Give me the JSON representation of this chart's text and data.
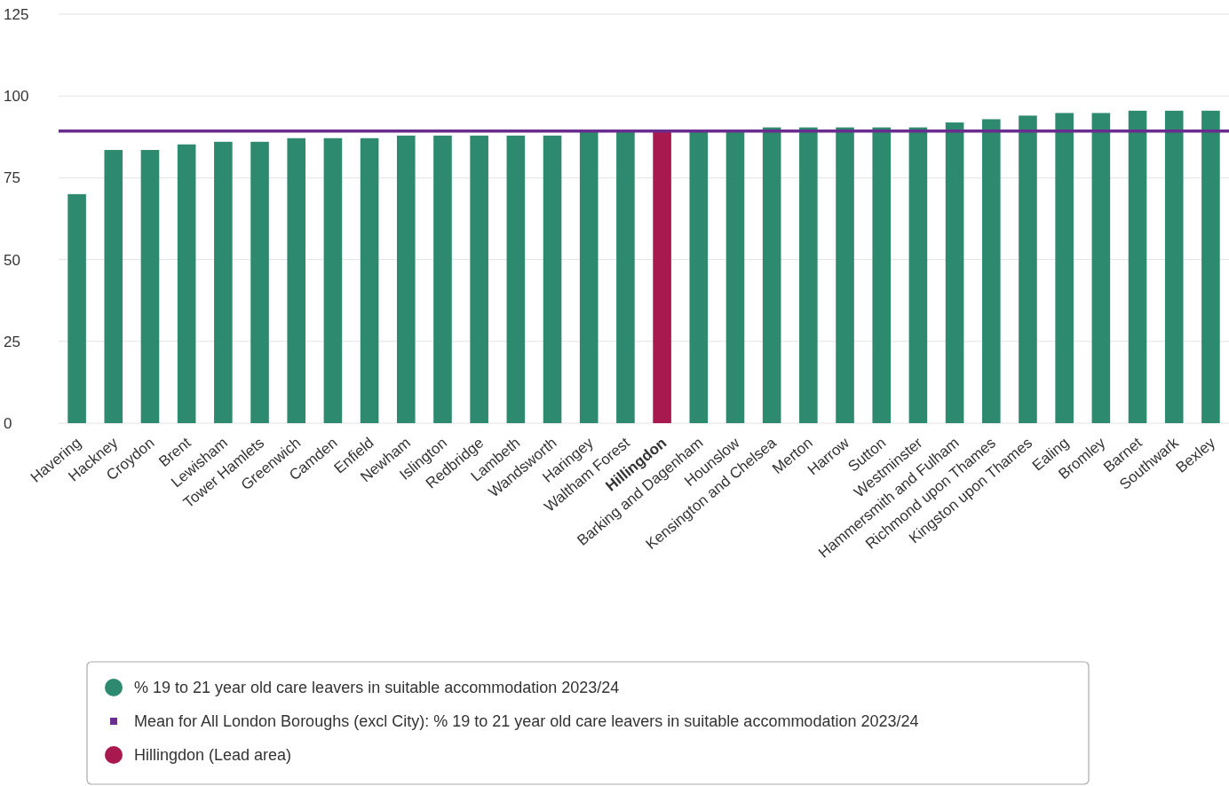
{
  "chart_data": {
    "type": "bar",
    "categories": [
      "Havering",
      "Hackney",
      "Croydon",
      "Brent",
      "Lewisham",
      "Tower Hamlets",
      "Greenwich",
      "Camden",
      "Enfield",
      "Newham",
      "Islington",
      "Redbridge",
      "Lambeth",
      "Wandsworth",
      "Haringey",
      "Waltham Forest",
      "Hillingdon",
      "Barking and Dagenham",
      "Hounslow",
      "Kensington and Chelsea",
      "Merton",
      "Harrow",
      "Sutton",
      "Westminster",
      "Hammersmith and Fulham",
      "Richmond upon Thames",
      "Kingston upon Thames",
      "Ealing",
      "Bromley",
      "Barnet",
      "Southwark",
      "Bexley"
    ],
    "series": [
      {
        "name": "% 19 to 21 year old care leavers in suitable accommodation 2023/24",
        "color": "#2e8a6e",
        "values": [
          70,
          83.5,
          83.5,
          85.2,
          86,
          86,
          87.1,
          87.1,
          87.1,
          87.9,
          87.9,
          87.9,
          87.9,
          87.9,
          89,
          89,
          null,
          89,
          89,
          90.4,
          90.4,
          90.4,
          90.4,
          90.4,
          91.9,
          92.9,
          94,
          94.8,
          94.8,
          95.5,
          95.5,
          95.5
        ]
      },
      {
        "name": "Hillingdon (Lead area)",
        "color": "#a8194f",
        "values": [
          null,
          null,
          null,
          null,
          null,
          null,
          null,
          null,
          null,
          null,
          null,
          null,
          null,
          null,
          null,
          null,
          89,
          null,
          null,
          null,
          null,
          null,
          null,
          null,
          null,
          null,
          null,
          null,
          null,
          null,
          null,
          null
        ]
      }
    ],
    "ref_lines": [
      {
        "axis": "y",
        "value": 89.3,
        "label": "Mean for All London Boroughs (excl City): % 19 to 21 year old care leavers in suitable accommodation 2023/24",
        "color": "#6a2c8e"
      }
    ],
    "ylim": [
      0,
      125
    ],
    "yticks": [
      0,
      25,
      50,
      75,
      100,
      125
    ],
    "grid": "y",
    "legend": "bottom"
  }
}
